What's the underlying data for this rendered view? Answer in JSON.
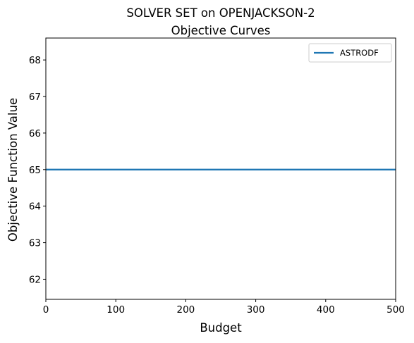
{
  "chart_data": {
    "type": "line",
    "title": "SOLVER SET on OPENJACKSON-2",
    "subtitle": "Objective Curves",
    "xlabel": "Budget",
    "ylabel": "Objective Function Value",
    "xlim": [
      0,
      500
    ],
    "ylim": [
      61.45,
      68.6
    ],
    "xticks": [
      0,
      100,
      200,
      300,
      400,
      500
    ],
    "xtick_labels": [
      "0",
      "100",
      "200",
      "300",
      "400",
      "500"
    ],
    "yticks": [
      62,
      63,
      64,
      65,
      66,
      67,
      68
    ],
    "ytick_labels": [
      "62",
      "63",
      "64",
      "65",
      "66",
      "67",
      "68"
    ],
    "grid": false,
    "legend_position": "top-right",
    "series": [
      {
        "name": "ASTRODF",
        "color": "#1f77b4",
        "x": [
          0,
          500
        ],
        "y": [
          65,
          65
        ]
      }
    ]
  }
}
